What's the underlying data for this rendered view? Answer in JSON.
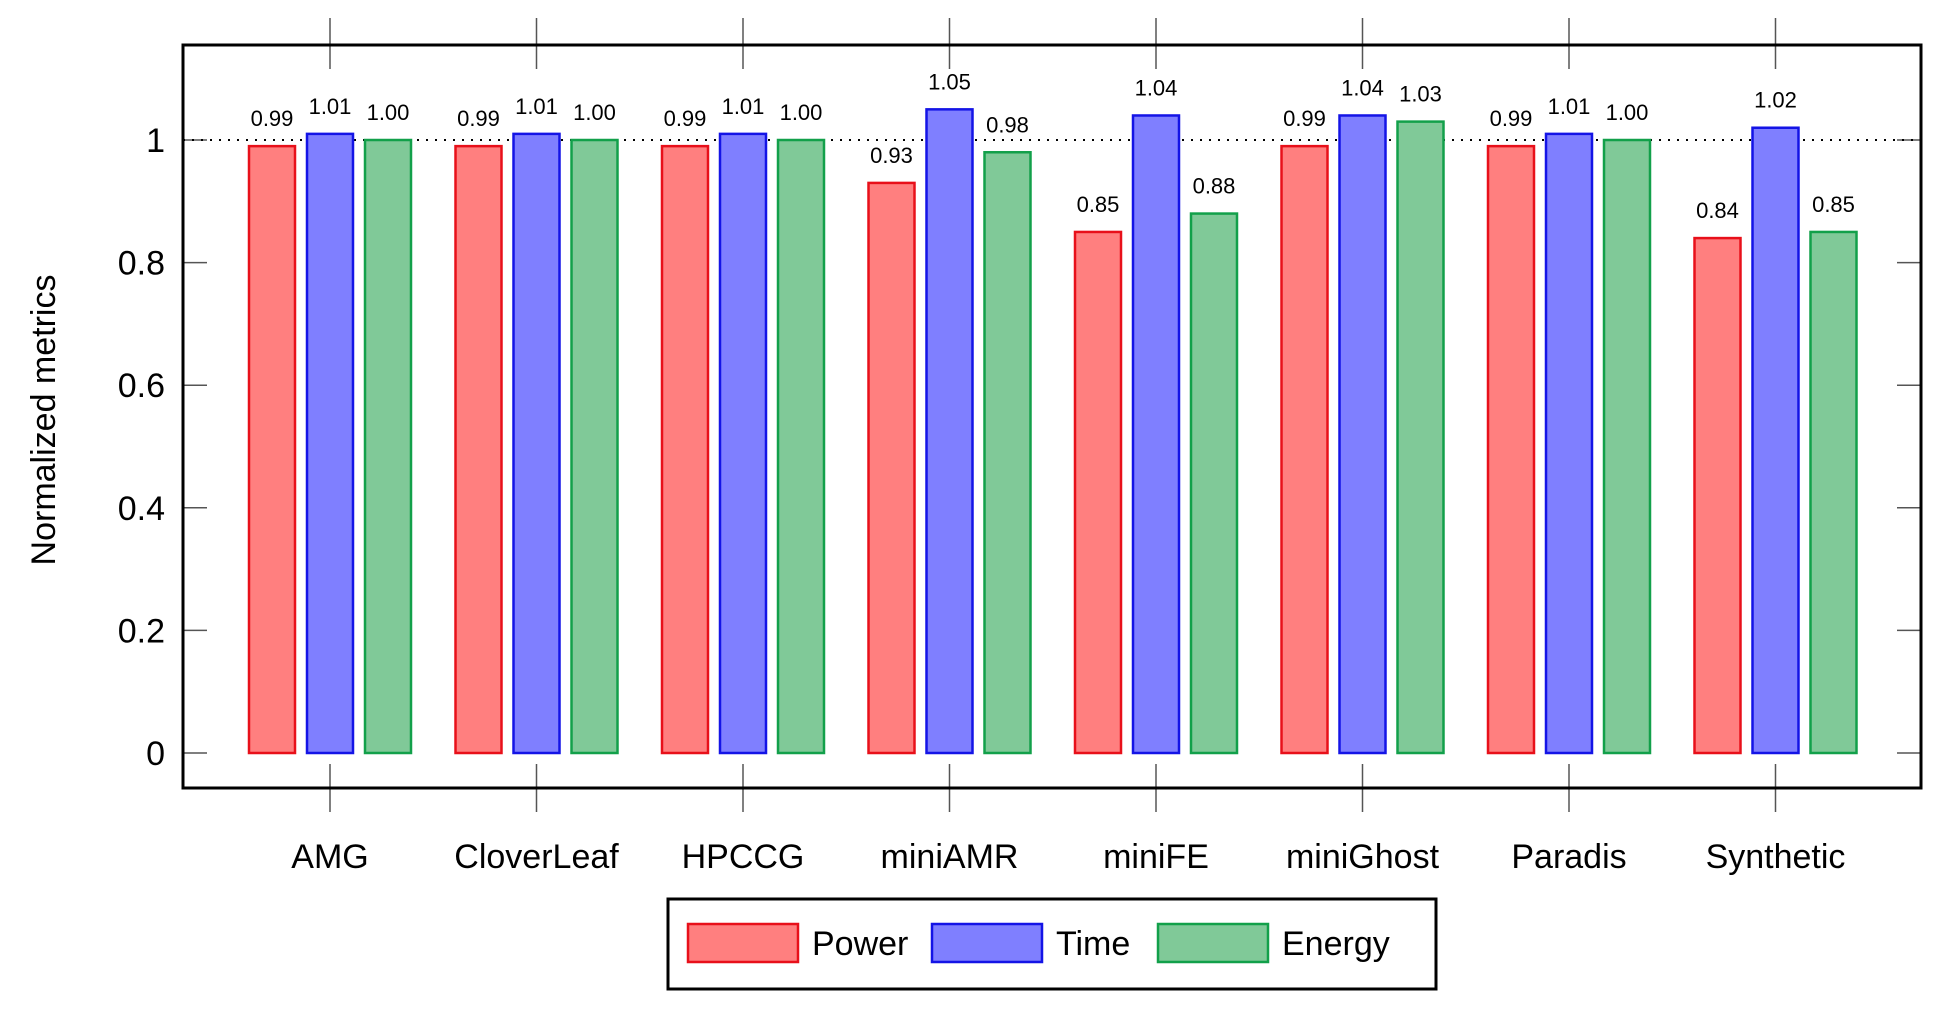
{
  "chart_data": {
    "type": "bar",
    "categories": [
      "AMG",
      "CloverLeaf",
      "HPCCG",
      "miniAMR",
      "miniFE",
      "miniGhost",
      "Paradis",
      "Synthetic"
    ],
    "series": [
      {
        "name": "Power",
        "values": [
          0.99,
          0.99,
          0.99,
          0.93,
          0.85,
          0.99,
          0.99,
          0.84
        ],
        "labels": [
          "0.99",
          "0.99",
          "0.99",
          "0.93",
          "0.85",
          "0.99",
          "0.99",
          "0.84"
        ],
        "fill": "#ff7f7f",
        "stroke": "#e8101a"
      },
      {
        "name": "Time",
        "values": [
          1.01,
          1.01,
          1.01,
          1.05,
          1.04,
          1.04,
          1.01,
          1.02
        ],
        "labels": [
          "1.01",
          "1.01",
          "1.01",
          "1.05",
          "1.04",
          "1.04",
          "1.01",
          "1.02"
        ],
        "fill": "#7f7fff",
        "stroke": "#1414e6"
      },
      {
        "name": "Energy",
        "values": [
          1.0,
          1.0,
          1.0,
          0.98,
          0.88,
          1.03,
          1.0,
          0.85
        ],
        "labels": [
          "1.00",
          "1.00",
          "1.00",
          "0.98",
          "0.88",
          "1.03",
          "1.00",
          "0.85"
        ],
        "fill": "#80c998",
        "stroke": "#12a04a"
      }
    ],
    "title": "",
    "xlabel": "",
    "ylabel": "Normalized metrics",
    "ylim": [
      -0.06,
      1.15
    ],
    "yticks": [
      0,
      0.2,
      0.4,
      0.6,
      0.8,
      1
    ],
    "ytick_labels": [
      "0",
      "0.2",
      "0.4",
      "0.6",
      "0.8",
      "1"
    ],
    "reference_line": 1,
    "grid": false,
    "legend_position": "bottom-center"
  }
}
